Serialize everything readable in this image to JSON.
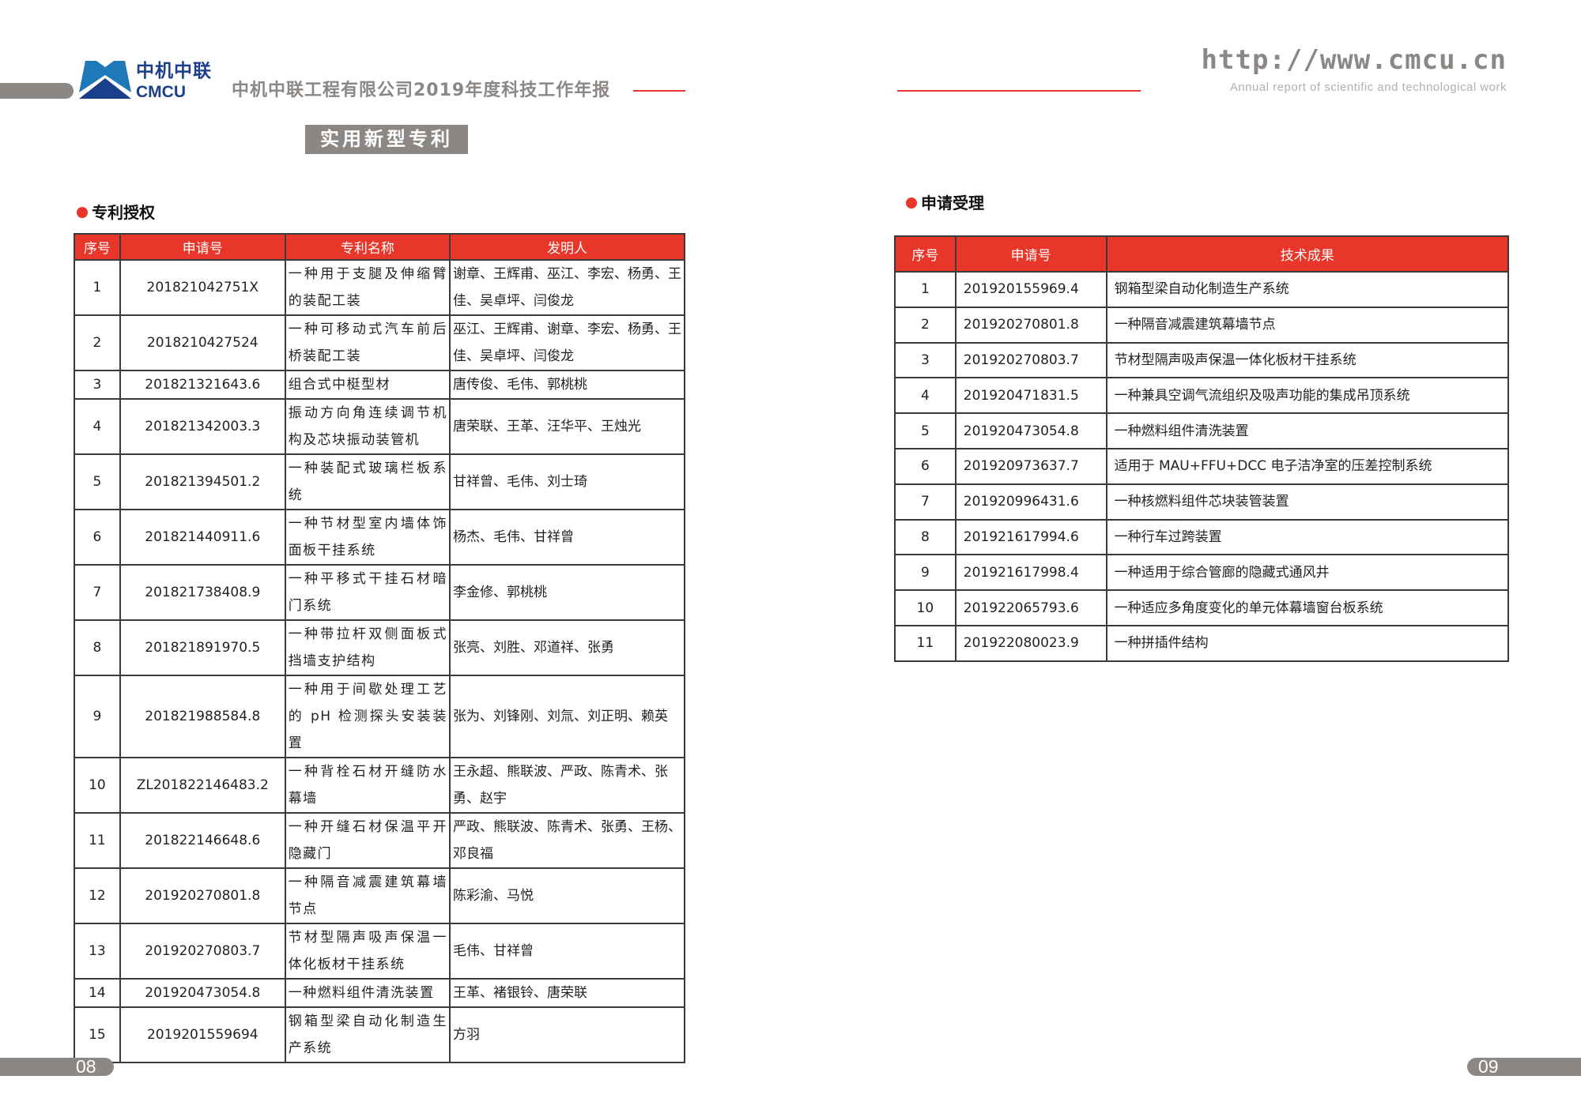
{
  "header": {
    "logo_cn": "中机中联",
    "logo_en": "CMCU",
    "doc_title": "中机中联工程有限公司2019年度科技工作年报",
    "url": "http://www.cmcu.cn",
    "subtitle": "Annual report of scientific and technological work"
  },
  "section_title": "实用新型专利",
  "colors": {
    "accent": "#e8372a",
    "gray": "#8b8784",
    "logo_blue": "#1c3f8c"
  },
  "granted": {
    "heading": "专利授权",
    "columns": [
      "序号",
      "申请号",
      "专利名称",
      "发明人"
    ],
    "rows": [
      [
        "1",
        "201821042751X",
        "一种用于支腿及伸缩臂的装配工装",
        "谢章、王辉甫、巫江、李宏、杨勇、王佳、吴卓坪、闫俊龙"
      ],
      [
        "2",
        "2018210427524",
        "一种可移动式汽车前后桥装配工装",
        "巫江、王辉甫、谢章、李宏、杨勇、王佳、吴卓坪、闫俊龙"
      ],
      [
        "3",
        "201821321643.6",
        "组合式中梃型材",
        "唐传俊、毛伟、郭桃桃"
      ],
      [
        "4",
        "201821342003.3",
        "振动方向角连续调节机构及芯块振动装管机",
        "唐荣联、王革、汪华平、王烛光"
      ],
      [
        "5",
        "201821394501.2",
        "一种装配式玻璃栏板系统",
        "甘祥曾、毛伟、刘士琦"
      ],
      [
        "6",
        "201821440911.6",
        "一种节材型室内墙体饰面板干挂系统",
        "杨杰、毛伟、甘祥曾"
      ],
      [
        "7",
        "201821738408.9",
        "一种平移式干挂石材暗门系统",
        "李金修、郭桃桃"
      ],
      [
        "8",
        "201821891970.5",
        "一种带拉杆双侧面板式挡墙支护结构",
        "张亮、刘胜、邓道祥、张勇"
      ],
      [
        "9",
        "201821988584.8",
        "一种用于间歇处理工艺的 pH 检测探头安装装置",
        "张为、刘锋刚、刘氚、刘正明、赖英"
      ],
      [
        "10",
        "ZL201822146483.2",
        "一种背栓石材开缝防水幕墙",
        "王永超、熊联波、严政、陈青术、张勇、赵宇"
      ],
      [
        "11",
        "201822146648.6",
        "一种开缝石材保温平开隐藏门",
        "严政、熊联波、陈青术、张勇、王杨、邓良福"
      ],
      [
        "12",
        "201920270801.8",
        "一种隔音减震建筑幕墙节点",
        "陈彩渝、马悦"
      ],
      [
        "13",
        "201920270803.7",
        "节材型隔声吸声保温一体化板材干挂系统",
        "毛伟、甘祥曾"
      ],
      [
        "14",
        "201920473054.8",
        "一种燃料组件清洗装置",
        "王革、褚银铃、唐荣联"
      ],
      [
        "15",
        "2019201559694",
        "钢箱型梁自动化制造生产系统",
        "方羽"
      ]
    ]
  },
  "accepted": {
    "heading": "申请受理",
    "columns": [
      "序号",
      "申请号",
      "技术成果"
    ],
    "rows": [
      [
        "1",
        "201920155969.4",
        "钢箱型梁自动化制造生产系统"
      ],
      [
        "2",
        "201920270801.8",
        "一种隔音减震建筑幕墙节点"
      ],
      [
        "3",
        "201920270803.7",
        "节材型隔声吸声保温一体化板材干挂系统"
      ],
      [
        "4",
        "201920471831.5",
        "一种兼具空调气流组织及吸声功能的集成吊顶系统"
      ],
      [
        "5",
        "201920473054.8",
        "一种燃料组件清洗装置"
      ],
      [
        "6",
        "201920973637.7",
        "适用于 MAU+FFU+DCC 电子洁净室的压差控制系统"
      ],
      [
        "7",
        "201920996431.6",
        "一种核燃料组件芯块装管装置"
      ],
      [
        "8",
        "201921617994.6",
        "一种行车过跨装置"
      ],
      [
        "9",
        "201921617998.4",
        "一种适用于综合管廊的隐藏式通风井"
      ],
      [
        "10",
        "201922065793.6",
        "一种适应多角度变化的单元体幕墙窗台板系统"
      ],
      [
        "11",
        "201922080023.9",
        "一种拼插件结构"
      ]
    ]
  },
  "page_numbers": {
    "left": "08",
    "right": "09"
  }
}
